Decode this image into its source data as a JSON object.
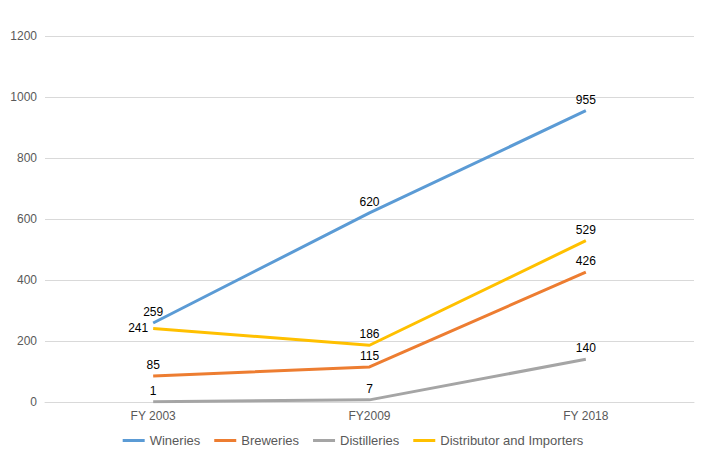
{
  "chart_data": {
    "type": "line",
    "categories": [
      "FY 2003",
      "FY2009",
      "FY 2018"
    ],
    "series": [
      {
        "name": "Wineries",
        "color": "#5B9BD5",
        "values": [
          259,
          620,
          955
        ]
      },
      {
        "name": "Breweries",
        "color": "#ED7D31",
        "values": [
          85,
          115,
          426
        ]
      },
      {
        "name": "Distilleries",
        "color": "#A5A5A5",
        "values": [
          1,
          7,
          140
        ]
      },
      {
        "name": "Distributor and Importers",
        "color": "#FFC000",
        "values": [
          241,
          186,
          529
        ]
      }
    ],
    "ylim": [
      0,
      1200
    ],
    "yticks": [
      0,
      200,
      400,
      600,
      800,
      1000,
      1200
    ],
    "grid": true,
    "data_labels": true,
    "legend": "bottom"
  }
}
